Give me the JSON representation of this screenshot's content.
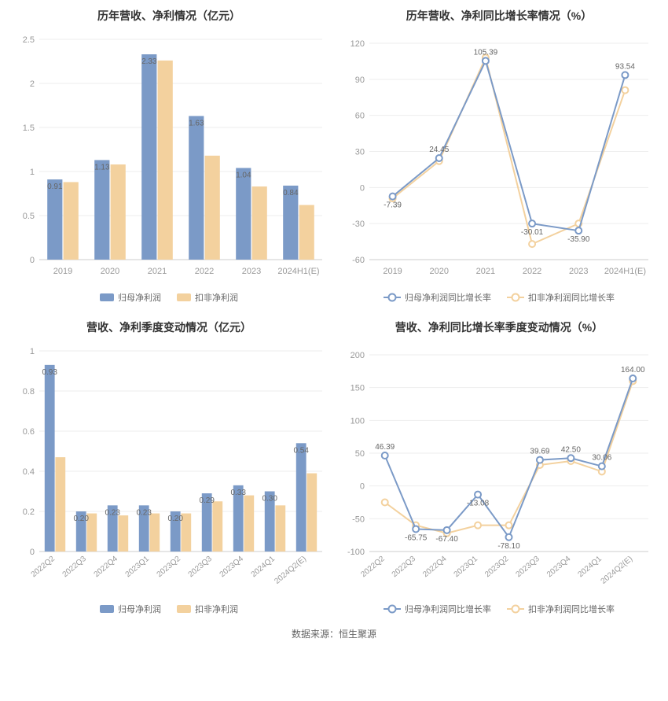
{
  "footer_text": "数据来源：恒生聚源",
  "colors": {
    "series1": "#7b9ac7",
    "series2": "#f3d19e",
    "grid": "#eeeeee",
    "axis": "#cccccc",
    "text_axis": "#999999",
    "text_label": "#666666",
    "background": "#ffffff"
  },
  "chart1": {
    "type": "bar",
    "title": "历年营收、净利情况（亿元）",
    "categories": [
      "2019",
      "2020",
      "2021",
      "2022",
      "2023",
      "2024H1(E)"
    ],
    "series": [
      {
        "name": "归母净利润",
        "color": "#7b9ac7",
        "values": [
          0.91,
          1.13,
          2.33,
          1.63,
          1.04,
          0.84
        ]
      },
      {
        "name": "扣非净利润",
        "color": "#f3d19e",
        "values": [
          0.88,
          1.08,
          2.26,
          1.18,
          0.83,
          0.62
        ]
      }
    ],
    "labels_on_series1": [
      "0.91",
      "1.13",
      "2.33",
      "1.63",
      "1.04",
      "0.84"
    ],
    "ylim": [
      0,
      2.5
    ],
    "ytick_step": 0.5,
    "legend": [
      "归母净利润",
      "扣非净利润"
    ]
  },
  "chart2": {
    "type": "line",
    "title": "历年营收、净利同比增长率情况（%）",
    "categories": [
      "2019",
      "2020",
      "2021",
      "2022",
      "2023",
      "2024H1(E)"
    ],
    "series": [
      {
        "name": "归母净利润同比增长率",
        "color": "#7b9ac7",
        "values": [
          -7.39,
          24.45,
          105.39,
          -30.01,
          -35.9,
          93.54
        ]
      },
      {
        "name": "扣非净利润同比增长率",
        "color": "#f3d19e",
        "values": [
          -9.0,
          22.0,
          108.0,
          -47.0,
          -30.0,
          81.0
        ]
      }
    ],
    "point_labels": [
      "-7.39",
      "24.45",
      "105.39",
      "-30.01",
      "-35.90",
      "93.54"
    ],
    "ylim": [
      -60,
      120
    ],
    "ytick_step": 30,
    "legend": [
      "归母净利润同比增长率",
      "扣非净利润同比增长率"
    ]
  },
  "chart3": {
    "type": "bar",
    "title": "营收、净利季度变动情况（亿元）",
    "categories": [
      "2022Q2",
      "2022Q3",
      "2022Q4",
      "2023Q1",
      "2023Q2",
      "2023Q3",
      "2023Q4",
      "2024Q1",
      "2024Q2(E)"
    ],
    "series": [
      {
        "name": "归母净利润",
        "color": "#7b9ac7",
        "values": [
          0.93,
          0.2,
          0.23,
          0.23,
          0.2,
          0.29,
          0.33,
          0.3,
          0.54
        ]
      },
      {
        "name": "扣非净利润",
        "color": "#f3d19e",
        "values": [
          0.47,
          0.19,
          0.18,
          0.19,
          0.19,
          0.25,
          0.28,
          0.23,
          0.39
        ]
      }
    ],
    "labels_on_series1": [
      "0.93",
      "0.20",
      "0.23",
      "0.23",
      "0.20",
      "0.29",
      "0.33",
      "0.30",
      "0.54"
    ],
    "ylim": [
      0,
      1.0
    ],
    "ytick_step": 0.2,
    "rotate_x": true,
    "legend": [
      "归母净利润",
      "扣非净利润"
    ]
  },
  "chart4": {
    "type": "line",
    "title": "营收、净利同比增长率季度变动情况（%）",
    "categories": [
      "2022Q2",
      "2022Q3",
      "2022Q4",
      "2023Q1",
      "2023Q2",
      "2023Q3",
      "2023Q4",
      "2024Q1",
      "2024Q2(E)"
    ],
    "series": [
      {
        "name": "归母净利润同比增长率",
        "color": "#7b9ac7",
        "values": [
          46.39,
          -65.75,
          -67.4,
          -13.08,
          -78.1,
          39.69,
          42.5,
          30.06,
          164.0
        ]
      },
      {
        "name": "扣非净利润同比增长率",
        "color": "#f3d19e",
        "values": [
          -25.0,
          -60.0,
          -72.0,
          -60.0,
          -60.0,
          32.0,
          38.0,
          22.0,
          160.0
        ]
      }
    ],
    "point_labels": [
      "46.39",
      "-65.75",
      "-67.40",
      "-13.08",
      "-78.10",
      "39.69",
      "42.50",
      "30.06",
      "164.00"
    ],
    "ylim": [
      -100,
      200
    ],
    "ytick_step": 50,
    "rotate_x": true,
    "legend": [
      "归母净利润同比增长率",
      "扣非净利润同比增长率"
    ]
  }
}
